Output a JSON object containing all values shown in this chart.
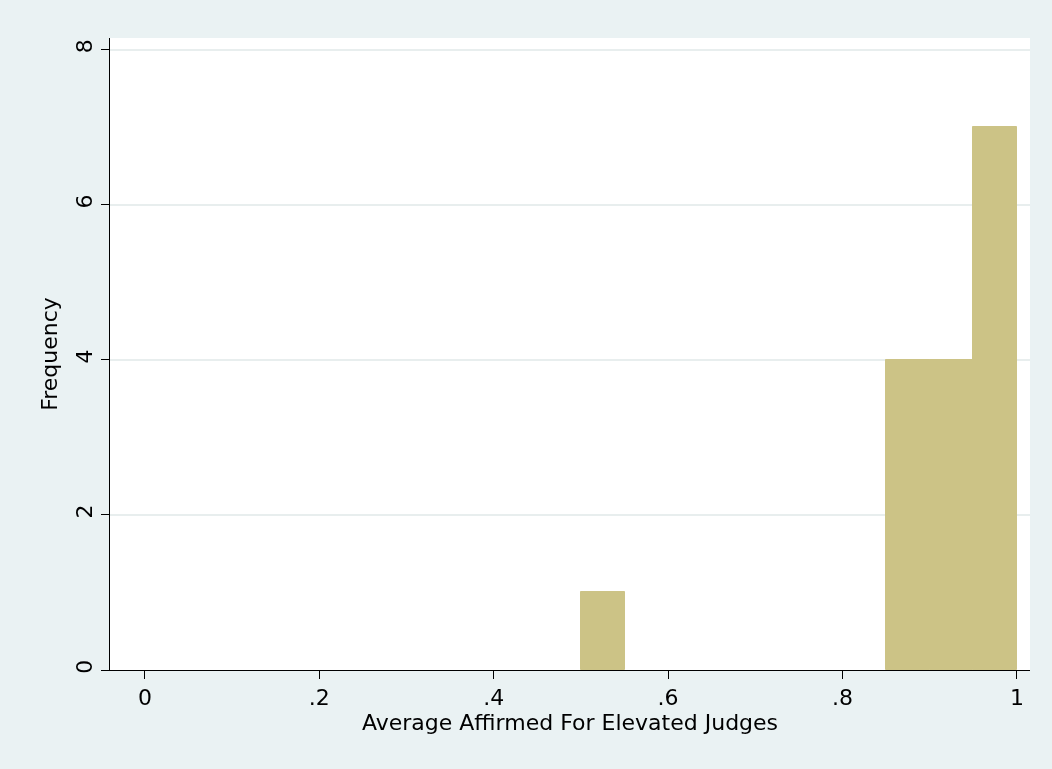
{
  "chart_data": {
    "type": "histogram",
    "xlabel": "Average Affirmed For Elevated Judges",
    "ylabel": "Frequency",
    "bins": [
      0.5,
      0.55,
      0.6,
      0.65,
      0.7,
      0.75,
      0.8,
      0.85,
      0.9,
      0.95,
      1
    ],
    "values": [
      1,
      0,
      0,
      0,
      0,
      0,
      0,
      4,
      4,
      7
    ],
    "color": "#ccc386",
    "xlim": [
      -0.04,
      1.015
    ],
    "xticks": [
      0,
      {
        "value": 0.2,
        "label": ".2"
      },
      {
        "value": 0.4,
        "label": ".4"
      },
      {
        "value": 0.6,
        "label": ".6"
      },
      {
        "value": 0.8,
        "label": ".8"
      },
      1
    ],
    "ylim": [
      0,
      8.15
    ],
    "yticks": [
      0,
      2,
      4,
      6,
      8
    ],
    "grid": "y",
    "legend": false
  }
}
